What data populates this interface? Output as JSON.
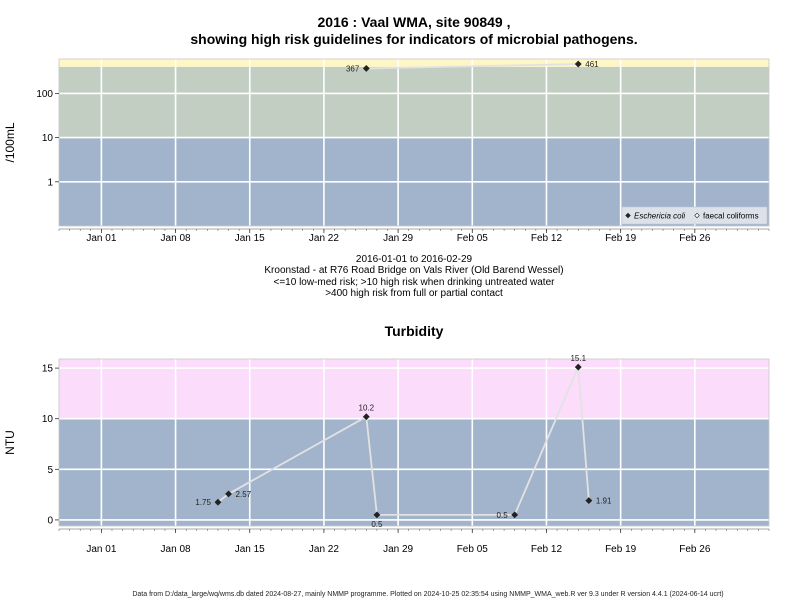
{
  "chart_data": [
    {
      "type": "scatter",
      "title_line1": "2016 : Vaal WMA, site 90849 ,",
      "title_line2": "showing high risk guidelines for indicators of microbial pathogens.",
      "ylabel": "/100mL",
      "yscale": "log",
      "x_range": [
        "2015-12-28",
        "2016-03-04"
      ],
      "ylim": [
        0.1,
        600
      ],
      "x_ticks": [
        {
          "date": "2016-01-01",
          "label": "Jan 01"
        },
        {
          "date": "2016-01-08",
          "label": "Jan 08"
        },
        {
          "date": "2016-01-15",
          "label": "Jan 15"
        },
        {
          "date": "2016-01-22",
          "label": "Jan 22"
        },
        {
          "date": "2016-01-29",
          "label": "Jan 29"
        },
        {
          "date": "2016-02-05",
          "label": "Feb 05"
        },
        {
          "date": "2016-02-12",
          "label": "Feb 12"
        },
        {
          "date": "2016-02-19",
          "label": "Feb 19"
        },
        {
          "date": "2016-02-26",
          "label": "Feb 26"
        }
      ],
      "y_ticks": [
        {
          "value": 1,
          "label": "1"
        },
        {
          "value": 10,
          "label": "10"
        },
        {
          "value": 100,
          "label": "100"
        }
      ],
      "bands": [
        {
          "from": 0.1,
          "to": 10,
          "color": "#a2b4cc"
        },
        {
          "from": 10,
          "to": 400,
          "color": "#c3cec3"
        },
        {
          "from": 400,
          "to": 600,
          "color": "#fff6c6"
        }
      ],
      "series": [
        {
          "name": "Eschericia coli",
          "marker": "filled-diamond",
          "points": [
            {
              "date": "2016-01-26",
              "value": 367,
              "label": "367",
              "label_side": "left"
            },
            {
              "date": "2016-02-15",
              "value": 461,
              "label": "461",
              "label_side": "right"
            }
          ]
        }
      ],
      "legend": {
        "placement": "bottom-right",
        "entries": [
          {
            "label": "Eschericia coli",
            "marker": "filled-diamond",
            "italic": true
          },
          {
            "label": "faecal coliforms",
            "marker": "open-diamond",
            "italic": false
          }
        ]
      },
      "caption_lines": [
        "2016-01-01 to 2016-02-29",
        "Kroonstad - at R76 Road Bridge on Vals River (Old Barend Wessel)",
        "<=10 low-med risk; >10 high risk when drinking untreated water",
        ">400 high risk from full or partial contact"
      ]
    },
    {
      "type": "line",
      "title": "Turbidity",
      "ylabel": "NTU",
      "yscale": "linear",
      "x_range": [
        "2015-12-28",
        "2016-03-04"
      ],
      "ylim": [
        -0.6,
        15.9
      ],
      "x_ticks": [
        {
          "date": "2016-01-01",
          "label": "Jan 01"
        },
        {
          "date": "2016-01-08",
          "label": "Jan 08"
        },
        {
          "date": "2016-01-15",
          "label": "Jan 15"
        },
        {
          "date": "2016-01-22",
          "label": "Jan 22"
        },
        {
          "date": "2016-01-29",
          "label": "Jan 29"
        },
        {
          "date": "2016-02-05",
          "label": "Feb 05"
        },
        {
          "date": "2016-02-12",
          "label": "Feb 12"
        },
        {
          "date": "2016-02-19",
          "label": "Feb 19"
        },
        {
          "date": "2016-02-26",
          "label": "Feb 26"
        }
      ],
      "y_ticks": [
        {
          "value": 0,
          "label": "0"
        },
        {
          "value": 5,
          "label": "5"
        },
        {
          "value": 10,
          "label": "10"
        },
        {
          "value": 15,
          "label": "15"
        }
      ],
      "bands": [
        {
          "from": -0.6,
          "to": 10,
          "color": "#a2b4cc"
        },
        {
          "from": 10,
          "to": 15.9,
          "color": "#fbdcfb"
        }
      ],
      "series": [
        {
          "name": "",
          "marker": "filled-diamond",
          "points": [
            {
              "date": "2016-01-12",
              "value": 1.75,
              "label": "1.75",
              "label_side": "left"
            },
            {
              "date": "2016-01-13",
              "value": 2.57,
              "label": "2.57",
              "label_side": "right"
            },
            {
              "date": "2016-01-26",
              "value": 10.2,
              "label": "10.2",
              "label_side": "above"
            },
            {
              "date": "2016-01-27",
              "value": 0.5,
              "label": "0.5",
              "label_side": "below"
            },
            {
              "date": "2016-02-09",
              "value": 0.5,
              "label": "0.5",
              "label_side": "left"
            },
            {
              "date": "2016-02-15",
              "value": 15.1,
              "label": "15.1",
              "label_side": "above"
            },
            {
              "date": "2016-02-16",
              "value": 1.91,
              "label": "1.91",
              "label_side": "right"
            }
          ]
        }
      ]
    }
  ],
  "footer": "Data from D:/data_large/wq/wms.db dated 2024-08-27, mainly NMMP programme. Plotted on 2024-10-25 02:35:54 using NMMP_WMA_web.R ver 9.3 under R version 4.4.1 (2024-06-14 ucrt)"
}
